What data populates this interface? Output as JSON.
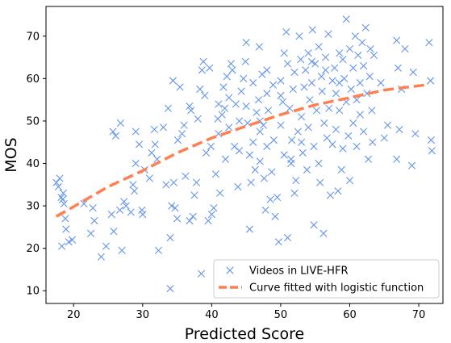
{
  "chart_data": {
    "type": "scatter",
    "xlabel": "Predicted Score",
    "ylabel": "MOS",
    "xlim": [
      16,
      73.5
    ],
    "ylim": [
      7,
      77
    ],
    "xticks": [
      20,
      30,
      40,
      50,
      60,
      70
    ],
    "yticks": [
      10,
      20,
      30,
      40,
      50,
      60,
      70
    ],
    "grid": false,
    "legend_position": "bottom-right",
    "colors": {
      "scatter": "#6495ED",
      "curve": "#FF7F50"
    },
    "series": [
      {
        "name": "Videos in LIVE-HFR",
        "kind": "scatter",
        "marker": "x",
        "points": [
          [
            17.5,
            35.5
          ],
          [
            17.8,
            34.5
          ],
          [
            18.0,
            36.5
          ],
          [
            18.2,
            32.0
          ],
          [
            18.4,
            31.5
          ],
          [
            18.5,
            33.0
          ],
          [
            18.6,
            30.5
          ],
          [
            18.8,
            27.0
          ],
          [
            18.3,
            20.5
          ],
          [
            18.9,
            24.5
          ],
          [
            19.3,
            21.5
          ],
          [
            19.8,
            22.0
          ],
          [
            21.5,
            30.5
          ],
          [
            22.5,
            23.5
          ],
          [
            23.0,
            26.5
          ],
          [
            22.8,
            29.5
          ],
          [
            24.0,
            18.0
          ],
          [
            24.7,
            20.5
          ],
          [
            25.5,
            28.0
          ],
          [
            25.8,
            24.0
          ],
          [
            26.1,
            46.5
          ],
          [
            25.7,
            47.5
          ],
          [
            26.8,
            49.5
          ],
          [
            27.0,
            19.5
          ],
          [
            26.7,
            29.0
          ],
          [
            27.3,
            31.0
          ],
          [
            27.6,
            30.0
          ],
          [
            28.3,
            28.5
          ],
          [
            28.6,
            35.0
          ],
          [
            28.8,
            33.5
          ],
          [
            29.0,
            40.0
          ],
          [
            29.0,
            47.5
          ],
          [
            29.5,
            44.5
          ],
          [
            29.9,
            29.0
          ],
          [
            30.0,
            28.0
          ],
          [
            30.3,
            38.5
          ],
          [
            31.0,
            36.5
          ],
          [
            31.3,
            42.5
          ],
          [
            31.7,
            48.0
          ],
          [
            31.8,
            44.5
          ],
          [
            32.1,
            41.0
          ],
          [
            32.3,
            19.5
          ],
          [
            33.0,
            48.5
          ],
          [
            33.4,
            35.0
          ],
          [
            33.7,
            53.0
          ],
          [
            34.0,
            22.5
          ],
          [
            34.2,
            30.0
          ],
          [
            34.0,
            10.5
          ],
          [
            34.4,
            59.5
          ],
          [
            34.5,
            35.5
          ],
          [
            34.7,
            29.5
          ],
          [
            35.0,
            27.0
          ],
          [
            35.1,
            45.5
          ],
          [
            35.4,
            58.0
          ],
          [
            35.7,
            47.0
          ],
          [
            36.0,
            49.0
          ],
          [
            36.2,
            37.0
          ],
          [
            36.8,
            53.5
          ],
          [
            37.0,
            52.5
          ],
          [
            36.8,
            26.5
          ],
          [
            37.3,
            27.5
          ],
          [
            37.5,
            32.5
          ],
          [
            37.8,
            35.5
          ],
          [
            38.0,
            50.5
          ],
          [
            38.3,
            57.5
          ],
          [
            38.6,
            62.0
          ],
          [
            38.8,
            64.0
          ],
          [
            38.5,
            14.0
          ],
          [
            39.0,
            56.0
          ],
          [
            39.2,
            42.5
          ],
          [
            39.5,
            26.5
          ],
          [
            39.7,
            62.5
          ],
          [
            39.9,
            44.0
          ],
          [
            40.0,
            28.0
          ],
          [
            40.3,
            29.5
          ],
          [
            40.6,
            37.5
          ],
          [
            40.9,
            50.5
          ],
          [
            41.0,
            54.0
          ],
          [
            41.2,
            33.0
          ],
          [
            41.5,
            51.5
          ],
          [
            41.7,
            58.0
          ],
          [
            41.9,
            53.0
          ],
          [
            42.0,
            41.0
          ],
          [
            42.2,
            60.5
          ],
          [
            42.5,
            48.5
          ],
          [
            42.5,
            55.5
          ],
          [
            42.8,
            63.5
          ],
          [
            43.0,
            62.0
          ],
          [
            43.3,
            44.0
          ],
          [
            43.8,
            34.5
          ],
          [
            44.0,
            50.0
          ],
          [
            44.0,
            43.0
          ],
          [
            44.3,
            57.0
          ],
          [
            44.6,
            60.0
          ],
          [
            44.9,
            64.0
          ],
          [
            45.0,
            68.5
          ],
          [
            45.0,
            53.5
          ],
          [
            45.2,
            49.5
          ],
          [
            45.5,
            42.0
          ],
          [
            45.5,
            24.5
          ],
          [
            45.7,
            35.5
          ],
          [
            46.0,
            59.0
          ],
          [
            46.0,
            45.0
          ],
          [
            46.3,
            38.5
          ],
          [
            46.5,
            52.0
          ],
          [
            46.8,
            55.0
          ],
          [
            46.9,
            67.5
          ],
          [
            47.0,
            40.5
          ],
          [
            47.0,
            47.5
          ],
          [
            47.3,
            61.0
          ],
          [
            47.5,
            49.0
          ],
          [
            47.6,
            36.5
          ],
          [
            47.8,
            29.0
          ],
          [
            48.0,
            56.5
          ],
          [
            48.0,
            44.0
          ],
          [
            48.2,
            52.5
          ],
          [
            48.5,
            31.5
          ],
          [
            48.7,
            38.0
          ],
          [
            48.9,
            58.5
          ],
          [
            49.0,
            45.5
          ],
          [
            49.2,
            27.5
          ],
          [
            49.5,
            32.0
          ],
          [
            49.7,
            21.5
          ],
          [
            50.0,
            49.0
          ],
          [
            50.0,
            59.5
          ],
          [
            50.3,
            54.5
          ],
          [
            50.5,
            42.0
          ],
          [
            50.5,
            66.0
          ],
          [
            50.8,
            71.0
          ],
          [
            51.0,
            63.5
          ],
          [
            51.0,
            22.5
          ],
          [
            51.3,
            53.0
          ],
          [
            51.5,
            40.0
          ],
          [
            51.6,
            45.5
          ],
          [
            51.8,
            57.5
          ],
          [
            52.0,
            61.5
          ],
          [
            52.0,
            33.0
          ],
          [
            52.2,
            36.0
          ],
          [
            52.5,
            47.5
          ],
          [
            52.7,
            70.0
          ],
          [
            52.9,
            64.5
          ],
          [
            53.0,
            51.0
          ],
          [
            53.2,
            42.5
          ],
          [
            53.4,
            58.0
          ],
          [
            53.6,
            62.0
          ],
          [
            53.8,
            38.5
          ],
          [
            54.0,
            66.0
          ],
          [
            54.0,
            48.5
          ],
          [
            54.2,
            55.0
          ],
          [
            54.5,
            59.0
          ],
          [
            54.6,
            71.5
          ],
          [
            54.8,
            44.0
          ],
          [
            54.8,
            25.5
          ],
          [
            55.0,
            63.5
          ],
          [
            55.2,
            52.5
          ],
          [
            55.5,
            67.5
          ],
          [
            55.5,
            40.0
          ],
          [
            55.7,
            35.5
          ],
          [
            55.9,
            60.5
          ],
          [
            56.0,
            57.0
          ],
          [
            56.2,
            23.5
          ],
          [
            56.3,
            49.5
          ],
          [
            56.5,
            65.0
          ],
          [
            56.7,
            46.0
          ],
          [
            56.9,
            70.5
          ],
          [
            57.0,
            53.0
          ],
          [
            57.2,
            32.5
          ],
          [
            57.5,
            59.5
          ],
          [
            57.5,
            44.5
          ],
          [
            57.8,
            62.5
          ],
          [
            58.0,
            56.5
          ],
          [
            58.0,
            48.0
          ],
          [
            58.3,
            33.5
          ],
          [
            58.5,
            66.0
          ],
          [
            58.5,
            52.5
          ],
          [
            58.8,
            38.5
          ],
          [
            59.0,
            64.5
          ],
          [
            59.0,
            43.5
          ],
          [
            59.2,
            60.0
          ],
          [
            59.5,
            74.0
          ],
          [
            59.5,
            54.5
          ],
          [
            59.8,
            46.5
          ],
          [
            60.0,
            67.0
          ],
          [
            60.0,
            36.0
          ],
          [
            60.2,
            57.5
          ],
          [
            60.5,
            62.5
          ],
          [
            60.5,
            49.5
          ],
          [
            60.8,
            70.0
          ],
          [
            61.0,
            55.0
          ],
          [
            61.0,
            44.0
          ],
          [
            61.2,
            65.5
          ],
          [
            61.5,
            51.5
          ],
          [
            61.5,
            59.0
          ],
          [
            61.8,
            68.5
          ],
          [
            62.0,
            47.5
          ],
          [
            62.0,
            63.0
          ],
          [
            62.3,
            72.0
          ],
          [
            62.5,
            56.5
          ],
          [
            62.7,
            41.0
          ],
          [
            62.9,
            60.5
          ],
          [
            63.0,
            67.0
          ],
          [
            63.2,
            52.5
          ],
          [
            63.3,
            45.0
          ],
          [
            63.5,
            65.5
          ],
          [
            64.5,
            59.0
          ],
          [
            65.0,
            46.0
          ],
          [
            65.5,
            49.0
          ],
          [
            66.8,
            41.0
          ],
          [
            66.8,
            69.0
          ],
          [
            67.0,
            62.5
          ],
          [
            67.2,
            48.0
          ],
          [
            67.5,
            57.5
          ],
          [
            68.0,
            67.0
          ],
          [
            69.0,
            39.5
          ],
          [
            69.2,
            61.5
          ],
          [
            69.5,
            47.0
          ],
          [
            71.5,
            68.5
          ],
          [
            71.7,
            59.5
          ],
          [
            71.8,
            45.5
          ],
          [
            71.9,
            43.0
          ],
          [
            47.0,
            50.0
          ],
          [
            48.0,
            62.0
          ],
          [
            51.5,
            41.0
          ],
          [
            54.5,
            64.0
          ],
          [
            58.5,
            59.0
          ],
          [
            41.0,
            47.0
          ],
          [
            43.5,
            54.0
          ],
          [
            56.5,
            62.0
          ],
          [
            50.0,
            56.0
          ],
          [
            53.0,
            45.0
          ]
        ]
      },
      {
        "name": "Curve fitted with logistic function",
        "kind": "line",
        "style": "dashed",
        "x": [
          17.5,
          20,
          25,
          30,
          35,
          40,
          45,
          50,
          55,
          60,
          65,
          70,
          71.5
        ],
        "y": [
          27.5,
          29.8,
          34.5,
          38.3,
          42.5,
          46.0,
          48.8,
          51.5,
          53.8,
          55.5,
          57.3,
          58.3,
          58.6
        ]
      }
    ]
  }
}
